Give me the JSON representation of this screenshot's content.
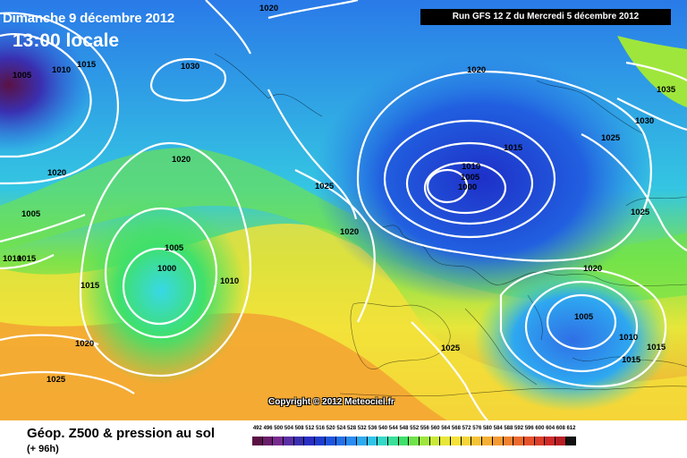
{
  "header": {
    "date_title": "Dimanche 9 décembre 2012",
    "local_time": "13:00 locale",
    "run_info": "Run GFS 12 Z du Mercredi 5 décembre 2012"
  },
  "map": {
    "copyright": "Copyright © 2012 Meteociel.fr",
    "isobar_labels": [
      "1005",
      "1010",
      "1015",
      "1020",
      "1030",
      "1020",
      "1020",
      "1005",
      "1000",
      "1010",
      "1015",
      "1020",
      "1025",
      "1025",
      "1020",
      "1015",
      "1010",
      "1005",
      "1000",
      "1025",
      "1020",
      "1005",
      "1010",
      "1015",
      "1015",
      "1025",
      "1030",
      "1035",
      "1025",
      "1010",
      "1015",
      "1005",
      "1020"
    ],
    "colors": {
      "low_500": "#1e3dd0",
      "mid_500": "#37e04a",
      "high_500": "#f5e13a",
      "very_high_500": "#f3a233",
      "isobar": "#ffffff"
    }
  },
  "footer": {
    "title": "Géop. Z500 & pression au sol",
    "subtitle": "(+ 96h)",
    "scale_labels": [
      "492",
      "496",
      "500",
      "504",
      "508",
      "512",
      "516",
      "520",
      "524",
      "528",
      "532",
      "536",
      "540",
      "544",
      "548",
      "552",
      "556",
      "560",
      "564",
      "568",
      "572",
      "576",
      "580",
      "584",
      "588",
      "592",
      "596",
      "600",
      "604",
      "608",
      "612"
    ],
    "scale_colors": [
      "#5a1244",
      "#6b1d6b",
      "#7a2b90",
      "#5b2fa5",
      "#3a2fb0",
      "#2a2fc4",
      "#1e3dd0",
      "#1f55de",
      "#2370ea",
      "#2a8cf0",
      "#2eaaf0",
      "#32c4e8",
      "#36d8c8",
      "#3adf9a",
      "#3fe06a",
      "#6fe34a",
      "#9fe63c",
      "#c9e83a",
      "#e7e63a",
      "#f5e13a",
      "#f7d43a",
      "#f6c337",
      "#f4b035",
      "#f39a33",
      "#f08230",
      "#ec6a2e",
      "#e5532c",
      "#dc3e2a",
      "#cf2a28",
      "#b81f25",
      "#111111"
    ]
  }
}
